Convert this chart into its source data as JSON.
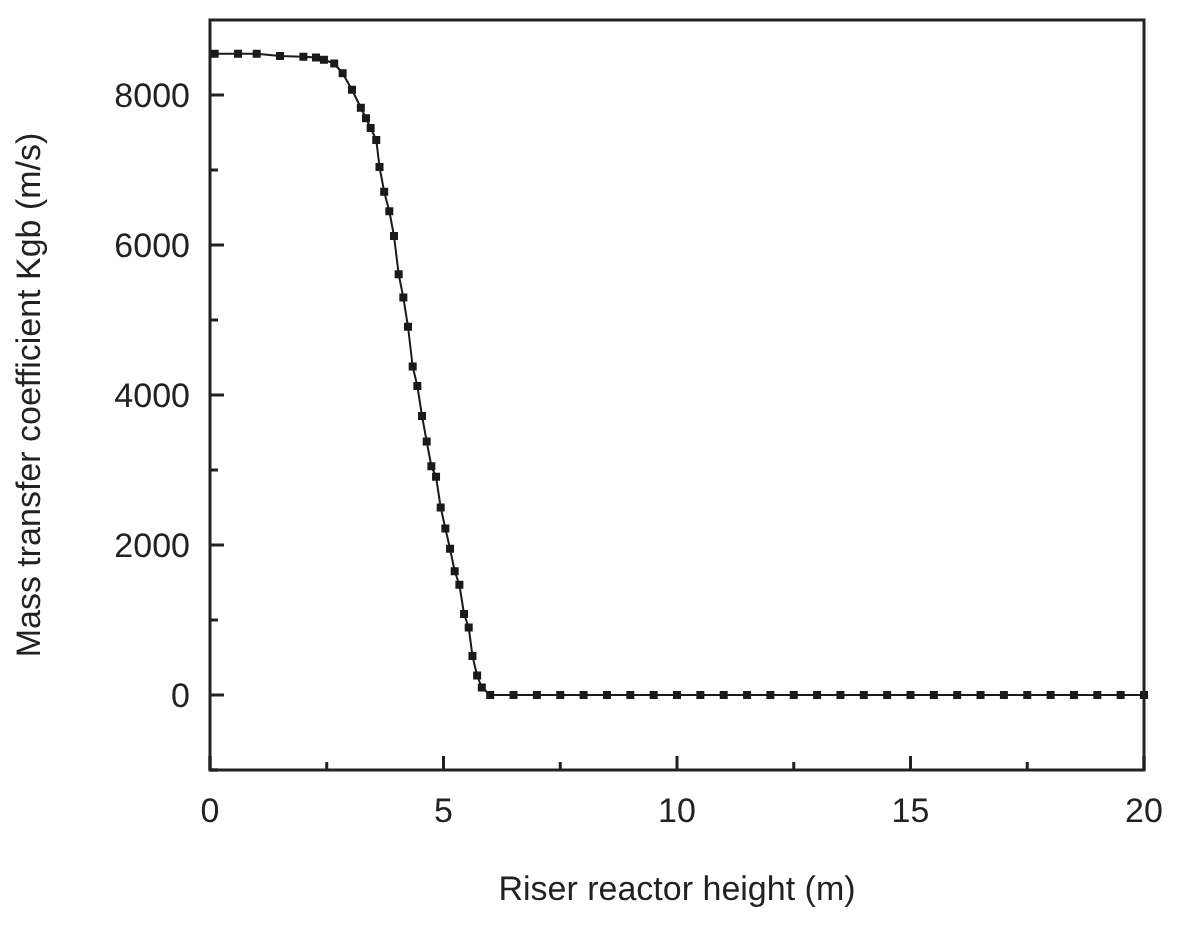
{
  "chart_data": {
    "type": "line",
    "xlabel": "Riser reactor height (m)",
    "ylabel": "Mass transfer coefficient Kgb (m/s)",
    "marker": "square",
    "line_style": "solid",
    "grid": false,
    "xlim": [
      0,
      20
    ],
    "xticks": [
      0,
      {
        "value": 2.5,
        "label": null
      },
      5,
      {
        "value": 7.5,
        "label": null
      },
      10,
      {
        "value": 12.5,
        "label": null
      },
      15,
      {
        "value": 17.5,
        "label": null
      },
      20
    ],
    "ylim": [
      -1000,
      9000
    ],
    "yticks": [
      {
        "value": -1000,
        "label": null
      },
      0,
      {
        "value": 1000,
        "label": null
      },
      2000,
      {
        "value": 3000,
        "label": null
      },
      4000,
      {
        "value": 5000,
        "label": null
      },
      6000,
      {
        "value": 7000,
        "label": null
      },
      8000
    ],
    "series": [
      {
        "color": "#1a1a1a",
        "x": [
          0.1,
          0.6,
          1.0,
          1.5,
          2.0,
          2.27,
          2.44,
          2.66,
          2.84,
          3.04,
          3.23,
          3.34,
          3.44,
          3.56,
          3.63,
          3.73,
          3.84,
          3.94,
          4.04,
          4.14,
          4.24,
          4.34,
          4.44,
          4.54,
          4.64,
          4.74,
          4.84,
          4.94,
          5.04,
          5.14,
          5.24,
          5.34,
          5.44,
          5.54,
          5.62,
          5.72,
          5.82,
          6.0,
          6.5,
          7.0,
          7.5,
          8.0,
          8.5,
          9.0,
          9.5,
          10.0,
          10.5,
          11.0,
          11.5,
          12.0,
          12.5,
          13.0,
          13.5,
          14.0,
          14.5,
          15.0,
          15.5,
          16.0,
          16.5,
          17.0,
          17.5,
          18.0,
          18.5,
          19.0,
          19.5,
          20.0
        ],
        "values": [
          8550,
          8550,
          8550,
          8520,
          8510,
          8500,
          8470,
          8420,
          8290,
          8070,
          7830,
          7690,
          7560,
          7400,
          7040,
          6710,
          6450,
          6120,
          5610,
          5300,
          4910,
          4380,
          4120,
          3720,
          3380,
          3050,
          2910,
          2500,
          2220,
          1950,
          1650,
          1470,
          1080,
          900,
          520,
          260,
          100,
          0,
          0,
          0,
          0,
          0,
          0,
          0,
          0,
          0,
          0,
          0,
          0,
          0,
          0,
          0,
          0,
          0,
          0,
          0,
          0,
          0,
          0,
          0,
          0,
          0,
          0,
          0,
          0,
          0
        ]
      }
    ]
  }
}
